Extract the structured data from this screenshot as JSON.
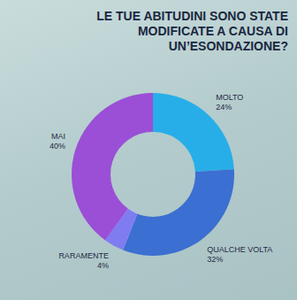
{
  "chart_data": {
    "type": "pie",
    "title": "LE TUE ABITUDINI SONO STATE MODIFICATE A CAUSA DI UN’ESONDAZIONE?",
    "categories": [
      "MOLTO",
      "QUALCHE VOLTA",
      "RARAMENTE",
      "MAI"
    ],
    "values": [
      24,
      32,
      4,
      40
    ],
    "value_labels": [
      "24%",
      "32%",
      "4%",
      "40%"
    ],
    "colors": [
      "#27aee8",
      "#3b6fd1",
      "#7f7cf2",
      "#9a4fd6"
    ],
    "data_labels": true
  }
}
